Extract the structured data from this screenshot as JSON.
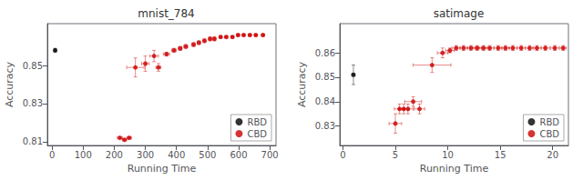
{
  "chart_data": [
    {
      "type": "scatter",
      "title": "mnist_784",
      "xlabel": "Running Time",
      "ylabel": "Accuracy",
      "xlim": [
        -15,
        720
      ],
      "ylim": [
        0.808,
        0.872
      ],
      "xticks": [
        0,
        100,
        200,
        300,
        400,
        500,
        600,
        700
      ],
      "yticks": [
        0.81,
        0.83,
        0.85
      ],
      "grid": false,
      "legend": "lower right",
      "series": [
        {
          "name": "RBD",
          "color": "#000000",
          "marker": "circle",
          "x": [
            10
          ],
          "values": [
            0.858
          ],
          "xerr": [
            4
          ],
          "yerr": [
            0.001
          ]
        },
        {
          "name": "CBD",
          "color": "#cc0000",
          "marker": "circle",
          "x": [
            218,
            233,
            248,
            268,
            300,
            328,
            342,
            368,
            392,
            412,
            430,
            455,
            472,
            490,
            508,
            522,
            542,
            560,
            580,
            598,
            616,
            636,
            655,
            678
          ],
          "values": [
            0.812,
            0.811,
            0.812,
            0.849,
            0.851,
            0.855,
            0.849,
            0.856,
            0.858,
            0.859,
            0.86,
            0.861,
            0.862,
            0.863,
            0.864,
            0.864,
            0.865,
            0.865,
            0.865,
            0.866,
            0.866,
            0.866,
            0.866,
            0.866
          ],
          "xerr": [
            8,
            7,
            7,
            28,
            12,
            14,
            8,
            10,
            7,
            6,
            6,
            5,
            5,
            5,
            4,
            4,
            4,
            4,
            4,
            4,
            4,
            4,
            4,
            4
          ],
          "yerr": [
            0.0005,
            0.0005,
            0.0005,
            0.005,
            0.004,
            0.003,
            0.002,
            0.001,
            0.001,
            0.001,
            0.001,
            0.001,
            0.001,
            0.001,
            0.001,
            0.001,
            0.0005,
            0.0005,
            0.0005,
            0.0005,
            0.0005,
            0.0005,
            0.0005,
            0.0005
          ]
        }
      ]
    },
    {
      "type": "scatter",
      "title": "satimage",
      "xlabel": "Running Time",
      "ylabel": "Accuracy",
      "xlim": [
        -0.3,
        21.5
      ],
      "ylim": [
        0.822,
        0.872
      ],
      "xticks": [
        0,
        5,
        10,
        15,
        20
      ],
      "yticks": [
        0.83,
        0.84,
        0.85,
        0.86
      ],
      "grid": false,
      "legend": "lower right",
      "series": [
        {
          "name": "RBD",
          "color": "#000000",
          "marker": "circle",
          "x": [
            1.0
          ],
          "values": [
            0.851
          ],
          "xerr": [
            0.15
          ],
          "yerr": [
            0.004
          ]
        },
        {
          "name": "CBD",
          "color": "#cc0000",
          "marker": "circle",
          "x": [
            5.0,
            5.4,
            5.8,
            6.2,
            6.7,
            7.3,
            8.5,
            9.5,
            10.2,
            10.8,
            11.5,
            12.2,
            12.8,
            13.4,
            14.0,
            14.8,
            15.5,
            16.2,
            17.0,
            17.8,
            18.5,
            19.3,
            20.2,
            21.0
          ],
          "values": [
            0.831,
            0.837,
            0.837,
            0.837,
            0.84,
            0.837,
            0.855,
            0.86,
            0.861,
            0.862,
            0.862,
            0.862,
            0.862,
            0.862,
            0.862,
            0.862,
            0.862,
            0.862,
            0.862,
            0.862,
            0.862,
            0.862,
            0.862,
            0.862
          ],
          "xerr": [
            0.6,
            0.5,
            0.5,
            0.5,
            0.8,
            0.5,
            1.8,
            0.5,
            0.4,
            0.4,
            0.4,
            0.4,
            0.4,
            0.4,
            0.4,
            0.4,
            0.4,
            0.4,
            0.4,
            0.4,
            0.4,
            0.4,
            0.4,
            0.3
          ],
          "yerr": [
            0.004,
            0.002,
            0.002,
            0.002,
            0.002,
            0.002,
            0.003,
            0.002,
            0.001,
            0.001,
            0.001,
            0.001,
            0.001,
            0.001,
            0.001,
            0.001,
            0.001,
            0.001,
            0.001,
            0.001,
            0.001,
            0.001,
            0.001,
            0.001
          ]
        }
      ]
    }
  ]
}
